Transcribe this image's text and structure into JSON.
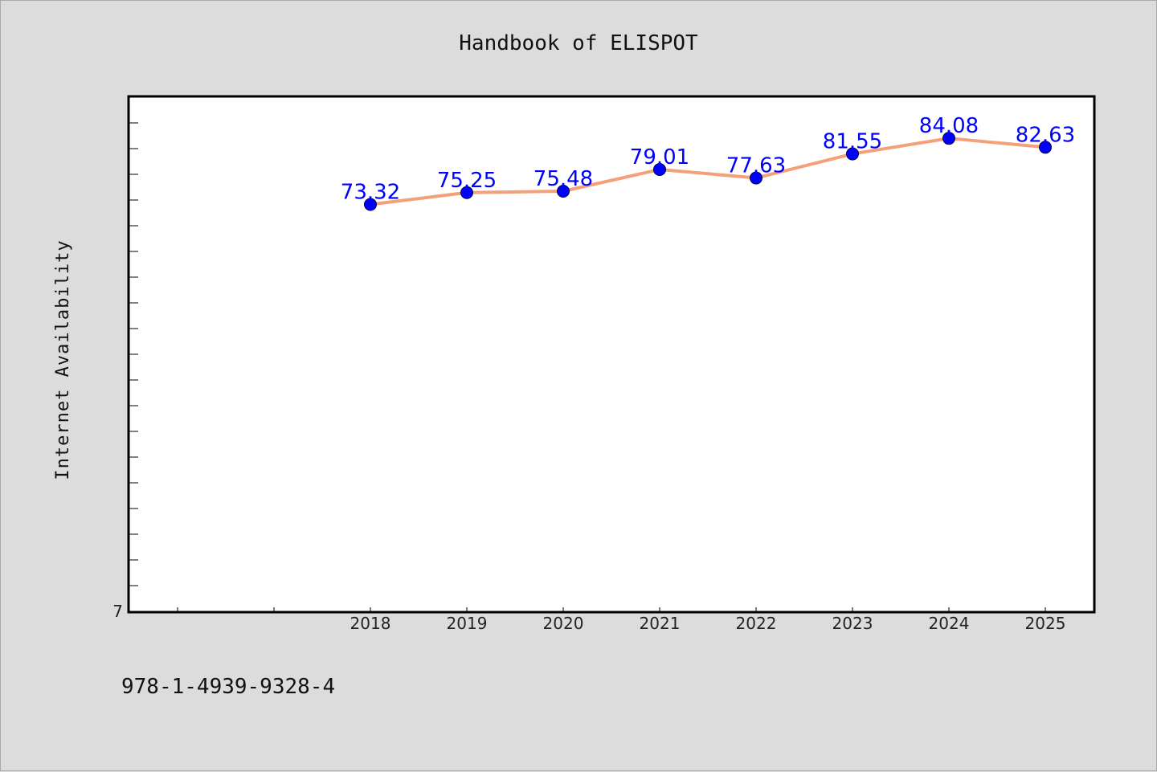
{
  "chart_data": {
    "type": "line",
    "title": "Handbook of ELISPOT",
    "xlabel": "",
    "ylabel": "Internet Availability",
    "categories": [
      "2018",
      "2019",
      "2020",
      "2021",
      "2022",
      "2023",
      "2024",
      "2025"
    ],
    "series": [
      {
        "values": [
          73.32,
          75.25,
          75.48,
          79.01,
          77.63,
          81.55,
          84.08,
          82.63
        ],
        "data_labels": [
          "73.32",
          "75.25",
          "75.48",
          "79.01",
          "77.63",
          "81.55",
          "84.08",
          "82.63"
        ]
      }
    ],
    "ylim": [
      7,
      90.9
    ],
    "y_tick_labels": [
      "7"
    ],
    "grid": false,
    "legend": "none",
    "colors": {
      "line": "#f4a07a",
      "marker": "#0000ff",
      "data_label": "#0000ff",
      "background": "#dcdcdc",
      "plot_background": "#ffffff"
    }
  },
  "footer": {
    "isbn": "978-1-4939-9328-4"
  }
}
